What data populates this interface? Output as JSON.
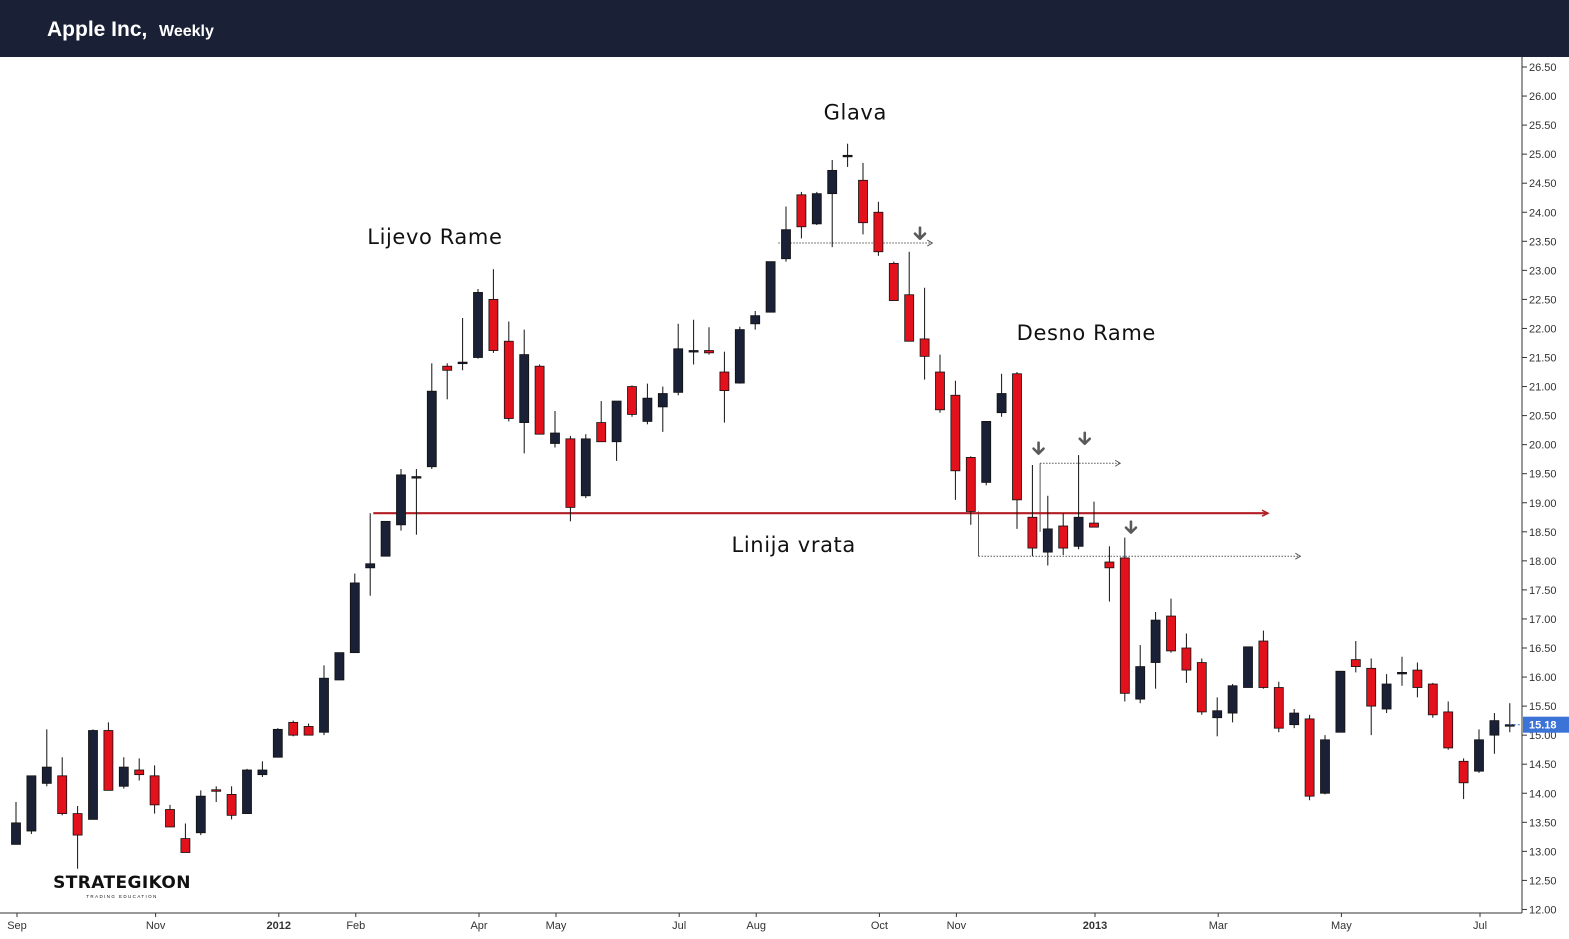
{
  "header": {
    "symbol": "Apple Inc,",
    "interval": "Weekly"
  },
  "brand": {
    "name": "STRATEGIKON",
    "tagline": "TRADING EDUCATION"
  },
  "colors": {
    "up": "#1a2035",
    "down": "#e3111b",
    "neckline": "#b21e24",
    "price_badge": "#3b73d6",
    "arrow": "#595959"
  },
  "chart_data": {
    "type": "candlestick",
    "ylim": [
      12.0,
      26.75
    ],
    "y_ticks": [
      "12.00",
      "12.50",
      "13.00",
      "13.50",
      "14.00",
      "14.50",
      "15.00",
      "15.50",
      "16.00",
      "16.50",
      "17.00",
      "17.50",
      "18.00",
      "18.50",
      "19.00",
      "19.50",
      "20.00",
      "20.50",
      "21.00",
      "21.50",
      "22.00",
      "22.50",
      "23.00",
      "23.50",
      "24.00",
      "24.50",
      "25.00",
      "25.50",
      "26.00",
      "26.50"
    ],
    "x_ticks": [
      "Sep",
      "Nov",
      "2012",
      "Feb",
      "Apr",
      "May",
      "Jul",
      "Aug",
      "Oct",
      "Nov",
      "2013",
      "Mar",
      "May",
      "Jul"
    ],
    "x_tick_index": [
      0,
      9,
      17,
      22,
      30,
      35,
      43,
      48,
      56,
      61,
      70,
      78,
      86,
      95
    ],
    "last_price": "15.18",
    "candles": [
      {
        "o": 13.12,
        "h": 13.85,
        "l": 13.12,
        "c": 13.49
      },
      {
        "o": 13.35,
        "h": 14.3,
        "l": 13.3,
        "c": 14.3
      },
      {
        "o": 14.17,
        "h": 15.1,
        "l": 14.12,
        "c": 14.45
      },
      {
        "o": 14.3,
        "h": 14.62,
        "l": 13.62,
        "c": 13.65
      },
      {
        "o": 13.65,
        "h": 13.78,
        "l": 12.7,
        "c": 13.28
      },
      {
        "o": 13.55,
        "h": 15.1,
        "l": 13.55,
        "c": 15.08
      },
      {
        "o": 15.08,
        "h": 15.22,
        "l": 14.05,
        "c": 14.05
      },
      {
        "o": 14.12,
        "h": 14.62,
        "l": 14.08,
        "c": 14.45
      },
      {
        "o": 14.4,
        "h": 14.6,
        "l": 14.22,
        "c": 14.32
      },
      {
        "o": 14.3,
        "h": 14.48,
        "l": 13.65,
        "c": 13.8
      },
      {
        "o": 13.72,
        "h": 13.8,
        "l": 13.42,
        "c": 13.42
      },
      {
        "o": 13.22,
        "h": 13.48,
        "l": 12.98,
        "c": 12.98
      },
      {
        "o": 13.32,
        "h": 14.05,
        "l": 13.28,
        "c": 13.95
      },
      {
        "o": 14.06,
        "h": 14.12,
        "l": 13.85,
        "c": 14.05
      },
      {
        "o": 13.98,
        "h": 14.12,
        "l": 13.55,
        "c": 13.62
      },
      {
        "o": 13.65,
        "h": 14.42,
        "l": 13.65,
        "c": 14.4
      },
      {
        "o": 14.32,
        "h": 14.55,
        "l": 14.28,
        "c": 14.4
      },
      {
        "o": 14.62,
        "h": 15.12,
        "l": 14.62,
        "c": 15.1
      },
      {
        "o": 15.22,
        "h": 15.25,
        "l": 14.98,
        "c": 15.0
      },
      {
        "o": 15.15,
        "h": 15.2,
        "l": 15.0,
        "c": 15.0
      },
      {
        "o": 15.05,
        "h": 16.2,
        "l": 15.0,
        "c": 15.98
      },
      {
        "o": 15.95,
        "h": 16.42,
        "l": 15.95,
        "c": 16.42
      },
      {
        "o": 16.42,
        "h": 17.78,
        "l": 16.42,
        "c": 17.62
      },
      {
        "o": 17.88,
        "h": 18.82,
        "l": 17.4,
        "c": 17.95
      },
      {
        "o": 18.08,
        "h": 18.68,
        "l": 18.08,
        "c": 18.68
      },
      {
        "o": 18.62,
        "h": 19.58,
        "l": 18.52,
        "c": 19.48
      },
      {
        "o": 19.45,
        "h": 19.58,
        "l": 18.45,
        "c": 19.45
      },
      {
        "o": 19.62,
        "h": 21.4,
        "l": 19.58,
        "c": 20.92
      },
      {
        "o": 21.35,
        "h": 21.4,
        "l": 20.78,
        "c": 21.28
      },
      {
        "o": 21.4,
        "h": 22.18,
        "l": 21.28,
        "c": 21.42
      },
      {
        "o": 21.5,
        "h": 22.68,
        "l": 21.48,
        "c": 22.62
      },
      {
        "o": 22.5,
        "h": 23.02,
        "l": 21.58,
        "c": 21.62
      },
      {
        "o": 21.78,
        "h": 22.12,
        "l": 20.4,
        "c": 20.45
      },
      {
        "o": 20.38,
        "h": 21.98,
        "l": 19.85,
        "c": 21.55
      },
      {
        "o": 21.35,
        "h": 21.38,
        "l": 20.18,
        "c": 20.18
      },
      {
        "o": 20.02,
        "h": 20.58,
        "l": 19.95,
        "c": 20.2
      },
      {
        "o": 20.1,
        "h": 20.15,
        "l": 18.68,
        "c": 18.92
      },
      {
        "o": 19.12,
        "h": 20.18,
        "l": 19.08,
        "c": 20.1
      },
      {
        "o": 20.38,
        "h": 20.75,
        "l": 20.05,
        "c": 20.05
      },
      {
        "o": 20.05,
        "h": 20.72,
        "l": 19.72,
        "c": 20.75
      },
      {
        "o": 21.0,
        "h": 21.02,
        "l": 20.48,
        "c": 20.52
      },
      {
        "o": 20.4,
        "h": 21.05,
        "l": 20.35,
        "c": 20.8
      },
      {
        "o": 20.65,
        "h": 21.0,
        "l": 20.22,
        "c": 20.88
      },
      {
        "o": 20.9,
        "h": 22.08,
        "l": 20.85,
        "c": 21.65
      },
      {
        "o": 21.62,
        "h": 22.15,
        "l": 21.38,
        "c": 21.62
      },
      {
        "o": 21.62,
        "h": 22.02,
        "l": 21.55,
        "c": 21.58
      },
      {
        "o": 21.25,
        "h": 21.6,
        "l": 20.38,
        "c": 20.93
      },
      {
        "o": 21.06,
        "h": 22.03,
        "l": 21.05,
        "c": 21.98
      },
      {
        "o": 22.08,
        "h": 22.3,
        "l": 21.98,
        "c": 22.22
      },
      {
        "o": 22.28,
        "h": 23.15,
        "l": 22.28,
        "c": 23.15
      },
      {
        "o": 23.2,
        "h": 24.1,
        "l": 23.15,
        "c": 23.7
      },
      {
        "o": 24.3,
        "h": 24.35,
        "l": 23.55,
        "c": 23.75
      },
      {
        "o": 23.8,
        "h": 24.35,
        "l": 23.78,
        "c": 24.32
      },
      {
        "o": 24.32,
        "h": 24.9,
        "l": 23.4,
        "c": 24.72
      },
      {
        "o": 24.98,
        "h": 25.18,
        "l": 24.78,
        "c": 24.98
      },
      {
        "o": 24.55,
        "h": 24.85,
        "l": 23.62,
        "c": 23.82
      },
      {
        "o": 24.0,
        "h": 24.18,
        "l": 23.25,
        "c": 23.32
      },
      {
        "o": 23.12,
        "h": 23.15,
        "l": 22.48,
        "c": 22.48
      },
      {
        "o": 22.58,
        "h": 23.32,
        "l": 21.78,
        "c": 21.78
      },
      {
        "o": 21.82,
        "h": 22.7,
        "l": 21.12,
        "c": 21.52
      },
      {
        "o": 21.25,
        "h": 21.55,
        "l": 20.55,
        "c": 20.6
      },
      {
        "o": 20.85,
        "h": 21.1,
        "l": 19.05,
        "c": 19.55
      },
      {
        "o": 19.78,
        "h": 19.8,
        "l": 18.62,
        "c": 18.85
      },
      {
        "o": 19.35,
        "h": 20.4,
        "l": 19.3,
        "c": 20.4
      },
      {
        "o": 20.55,
        "h": 21.22,
        "l": 20.48,
        "c": 20.88
      },
      {
        "o": 21.22,
        "h": 21.25,
        "l": 18.55,
        "c": 19.05
      },
      {
        "o": 18.75,
        "h": 19.65,
        "l": 18.08,
        "c": 18.22
      },
      {
        "o": 18.15,
        "h": 19.12,
        "l": 17.92,
        "c": 18.55
      },
      {
        "o": 18.6,
        "h": 18.82,
        "l": 18.1,
        "c": 18.22
      },
      {
        "o": 18.25,
        "h": 19.82,
        "l": 18.2,
        "c": 18.75
      },
      {
        "o": 18.65,
        "h": 19.02,
        "l": 18.58,
        "c": 18.58
      },
      {
        "o": 17.98,
        "h": 18.25,
        "l": 17.3,
        "c": 17.88
      },
      {
        "o": 18.05,
        "h": 18.4,
        "l": 15.58,
        "c": 15.72
      },
      {
        "o": 15.62,
        "h": 16.55,
        "l": 15.55,
        "c": 16.18
      },
      {
        "o": 16.25,
        "h": 17.12,
        "l": 15.8,
        "c": 16.98
      },
      {
        "o": 17.05,
        "h": 17.35,
        "l": 16.42,
        "c": 16.45
      },
      {
        "o": 16.5,
        "h": 16.75,
        "l": 15.9,
        "c": 16.12
      },
      {
        "o": 16.25,
        "h": 16.32,
        "l": 15.35,
        "c": 15.4
      },
      {
        "o": 15.3,
        "h": 15.65,
        "l": 14.98,
        "c": 15.42
      },
      {
        "o": 15.38,
        "h": 15.88,
        "l": 15.22,
        "c": 15.85
      },
      {
        "o": 15.82,
        "h": 16.52,
        "l": 15.82,
        "c": 16.52
      },
      {
        "o": 16.62,
        "h": 16.8,
        "l": 15.8,
        "c": 15.82
      },
      {
        "o": 15.82,
        "h": 15.92,
        "l": 15.05,
        "c": 15.12
      },
      {
        "o": 15.18,
        "h": 15.45,
        "l": 15.12,
        "c": 15.38
      },
      {
        "o": 15.28,
        "h": 15.35,
        "l": 13.88,
        "c": 13.95
      },
      {
        "o": 14.0,
        "h": 15.0,
        "l": 13.98,
        "c": 14.92
      },
      {
        "o": 15.05,
        "h": 16.1,
        "l": 15.05,
        "c": 16.1
      },
      {
        "o": 16.3,
        "h": 16.62,
        "l": 16.08,
        "c": 16.18
      },
      {
        "o": 16.15,
        "h": 16.32,
        "l": 15.0,
        "c": 15.5
      },
      {
        "o": 15.45,
        "h": 16.05,
        "l": 15.38,
        "c": 15.88
      },
      {
        "o": 16.08,
        "h": 16.35,
        "l": 15.85,
        "c": 16.08
      },
      {
        "o": 16.12,
        "h": 16.25,
        "l": 15.65,
        "c": 15.82
      },
      {
        "o": 15.88,
        "h": 15.9,
        "l": 15.3,
        "c": 15.35
      },
      {
        "o": 15.4,
        "h": 15.58,
        "l": 14.75,
        "c": 14.78
      },
      {
        "o": 14.55,
        "h": 14.6,
        "l": 13.9,
        "c": 14.18
      },
      {
        "o": 14.38,
        "h": 15.1,
        "l": 14.35,
        "c": 14.92
      },
      {
        "o": 15.0,
        "h": 15.38,
        "l": 14.68,
        "c": 15.25
      },
      {
        "o": 15.18,
        "h": 15.55,
        "l": 15.05,
        "c": 15.18
      }
    ],
    "annotations": [
      {
        "text": "Glava",
        "x": 54.5,
        "y": 25.6
      },
      {
        "text": "Lijevo Rame",
        "x": 27.2,
        "y": 23.45
      },
      {
        "text": "Desno Rame",
        "x": 69.5,
        "y": 21.8
      },
      {
        "text": "Linija vrata",
        "x": 50.5,
        "y": 18.15
      }
    ],
    "neckline": {
      "x1": 23.2,
      "y1": 18.82,
      "x2": 81.3,
      "y2": 18.82
    },
    "markers": [
      {
        "type": "dotted_level",
        "x1": 49.5,
        "x2": 59.5,
        "y": 23.47
      },
      {
        "type": "dotted_level",
        "x1": 66.5,
        "x2": 71.7,
        "y": 19.68
      },
      {
        "type": "dotted_level",
        "x1": 62.5,
        "x2": 83.4,
        "y": 18.08
      },
      {
        "type": "bracket",
        "x": 62.5,
        "y1": 18.08,
        "y2": 18.85
      },
      {
        "type": "bracket",
        "x": 66.5,
        "y1": 19.68,
        "y2": 18.5
      },
      {
        "type": "arrow_down",
        "x": 58.7,
        "y": 23.58
      },
      {
        "type": "arrow_down",
        "x": 66.4,
        "y": 19.88
      },
      {
        "type": "arrow_down",
        "x": 69.4,
        "y": 20.05
      },
      {
        "type": "arrow_down",
        "x": 72.4,
        "y": 18.52
      }
    ]
  }
}
